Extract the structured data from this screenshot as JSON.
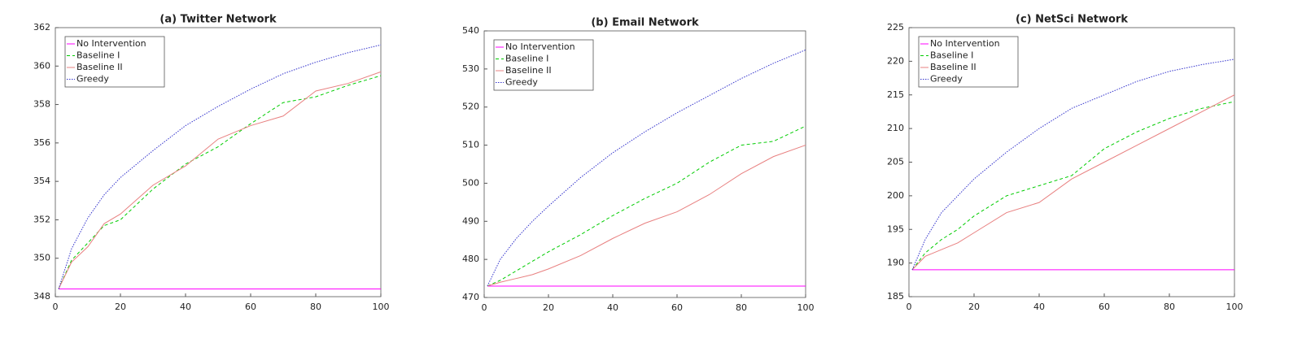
{
  "chart_data": [
    {
      "type": "line",
      "title": "(a) Twitter Network",
      "x": [
        1,
        5,
        10,
        15,
        20,
        30,
        40,
        50,
        60,
        70,
        80,
        90,
        100
      ],
      "series": [
        {
          "name": "No Intervention",
          "color": "#ff00ff",
          "linestyle": "solid",
          "values": [
            348.4,
            348.4,
            348.4,
            348.4,
            348.4,
            348.4,
            348.4,
            348.4,
            348.4,
            348.4,
            348.4,
            348.4,
            348.4
          ]
        },
        {
          "name": "Baseline I",
          "color": "#00cc00",
          "linestyle": "dashed",
          "values": [
            348.4,
            349.9,
            350.8,
            351.7,
            352.0,
            353.6,
            354.9,
            355.8,
            357.0,
            358.1,
            358.4,
            359.0,
            359.5
          ]
        },
        {
          "name": "Baseline II",
          "color": "#e88080",
          "linestyle": "solid",
          "values": [
            348.4,
            349.8,
            350.6,
            351.8,
            352.3,
            353.8,
            354.8,
            356.2,
            356.9,
            357.4,
            358.7,
            359.1,
            359.7
          ]
        },
        {
          "name": "Greedy",
          "color": "#3333cc",
          "linestyle": "dotted",
          "values": [
            348.4,
            350.5,
            352.1,
            353.3,
            354.2,
            355.6,
            356.9,
            357.9,
            358.8,
            359.6,
            360.2,
            360.7,
            361.1
          ]
        }
      ],
      "xlim": [
        0,
        100
      ],
      "ylim": [
        348,
        362
      ],
      "xticks": [
        0,
        20,
        40,
        60,
        80,
        100
      ],
      "yticks": [
        348,
        350,
        352,
        354,
        356,
        358,
        360,
        362
      ],
      "legend": "upper left"
    },
    {
      "type": "line",
      "title": "(b) Email Network",
      "x": [
        1,
        5,
        10,
        15,
        20,
        30,
        40,
        50,
        60,
        70,
        80,
        90,
        100
      ],
      "series": [
        {
          "name": "No Intervention",
          "color": "#ff00ff",
          "linestyle": "solid",
          "values": [
            473,
            473,
            473,
            473,
            473,
            473,
            473,
            473,
            473,
            473,
            473,
            473,
            473
          ]
        },
        {
          "name": "Baseline I",
          "color": "#00cc00",
          "linestyle": "dashed",
          "values": [
            473,
            474.5,
            477,
            479.5,
            482,
            486.5,
            491.5,
            496,
            500,
            505.5,
            510,
            511,
            515
          ]
        },
        {
          "name": "Baseline II",
          "color": "#e88080",
          "linestyle": "solid",
          "values": [
            473,
            474,
            475,
            476,
            477.5,
            481,
            485.5,
            489.5,
            492.5,
            497,
            502.5,
            507,
            510
          ]
        },
        {
          "name": "Greedy",
          "color": "#3333cc",
          "linestyle": "dotted",
          "values": [
            473,
            480,
            485.5,
            490,
            494,
            501.5,
            508,
            513.5,
            518.5,
            523,
            527.5,
            531.5,
            535
          ]
        }
      ],
      "xlim": [
        0,
        100
      ],
      "ylim": [
        470,
        540
      ],
      "xticks": [
        0,
        20,
        40,
        60,
        80,
        100
      ],
      "yticks": [
        470,
        480,
        490,
        500,
        510,
        520,
        530,
        540
      ],
      "legend": "upper left"
    },
    {
      "type": "line",
      "title": "(c) NetSci Network",
      "x": [
        1,
        5,
        10,
        15,
        20,
        30,
        40,
        50,
        60,
        70,
        80,
        90,
        100
      ],
      "series": [
        {
          "name": "No Intervention",
          "color": "#ff00ff",
          "linestyle": "solid",
          "values": [
            189,
            189,
            189,
            189,
            189,
            189,
            189,
            189,
            189,
            189,
            189,
            189,
            189
          ]
        },
        {
          "name": "Baseline I",
          "color": "#00cc00",
          "linestyle": "dashed",
          "values": [
            189,
            191.5,
            193.5,
            195,
            197,
            200,
            201.5,
            203,
            207,
            209.5,
            211.5,
            213,
            214
          ]
        },
        {
          "name": "Baseline II",
          "color": "#e88080",
          "linestyle": "solid",
          "values": [
            189,
            191,
            192,
            193,
            194.5,
            197.5,
            199,
            202.5,
            205,
            207.5,
            210,
            212.5,
            215
          ]
        },
        {
          "name": "Greedy",
          "color": "#3333cc",
          "linestyle": "dotted",
          "values": [
            189,
            193.5,
            197.5,
            200,
            202.5,
            206.5,
            210,
            213,
            215,
            217,
            218.5,
            219.5,
            220.3
          ]
        }
      ],
      "xlim": [
        0,
        100
      ],
      "ylim": [
        185,
        225
      ],
      "xticks": [
        0,
        20,
        40,
        60,
        80,
        100
      ],
      "yticks": [
        185,
        190,
        195,
        200,
        205,
        210,
        215,
        220,
        225
      ],
      "legend": "upper left"
    }
  ]
}
